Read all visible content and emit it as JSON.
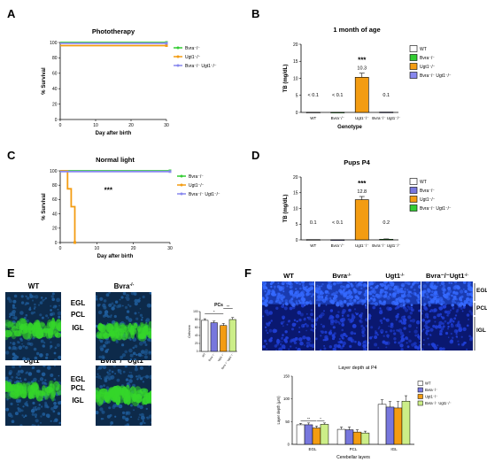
{
  "panels": {
    "A": {
      "letter": "A"
    },
    "B": {
      "letter": "B"
    },
    "C": {
      "letter": "C"
    },
    "D": {
      "letter": "D"
    },
    "E": {
      "letter": "E"
    },
    "F": {
      "letter": "F"
    }
  },
  "genotypes": {
    "wt": "WT",
    "bvra": "Bvra⁻/⁻",
    "ugt1": "Ugt1⁻/⁻",
    "double": "Bvra⁻/⁻ Ugt1⁻/⁻"
  },
  "histology_E": {
    "images": [
      {
        "title_base": "WT",
        "title_sup": ""
      },
      {
        "title_base": "Bvra",
        "title_sup": "-/-"
      },
      {
        "title_base": "Ugt1",
        "title_sup": "-/-"
      },
      {
        "title_base": "Bvra⁻/⁻ Ugt1",
        "title_sup": "-/-"
      }
    ],
    "layers": [
      "EGL",
      "PCL",
      "IGL"
    ]
  },
  "histology_F": {
    "images": [
      {
        "title_base": "WT",
        "title_sup": ""
      },
      {
        "title_base": "Bvra",
        "title_sup": "-/-"
      },
      {
        "title_base": "Ugt1",
        "title_sup": "-/-"
      },
      {
        "title_base": "Bvra⁻/⁻Ugt1",
        "title_sup": "-/-"
      }
    ],
    "layers": [
      "EGL",
      "PCL",
      "IGL"
    ]
  },
  "colors": {
    "wt": "#ffffff",
    "bvra_green": "#33cc33",
    "ugt1_orange": "#f39c12",
    "double_purple": "#8888ee",
    "bvra_blue": "#7777dd",
    "double_lightgreen": "#ccee88"
  },
  "chart_data": [
    {
      "id": "A",
      "type": "line",
      "title": "Phototherapy",
      "xlabel": "Day after birth",
      "ylabel": "% Survival",
      "xlim": [
        0,
        30
      ],
      "ylim": [
        0,
        100
      ],
      "xticks": [
        "0",
        "10",
        "20",
        "30"
      ],
      "yticks": [
        "0",
        "20",
        "40",
        "60",
        "80",
        "100"
      ],
      "legend_position": "right",
      "series": [
        {
          "name": "Bvra⁻/⁻",
          "color": "#33cc33",
          "x": [
            0,
            30
          ],
          "y": [
            100,
            100
          ]
        },
        {
          "name": "Ugt1⁻/⁻",
          "color": "#f39c12",
          "x": [
            0,
            30
          ],
          "y": [
            96,
            96
          ]
        },
        {
          "name": "Bvra⁻/⁻ Ugt1⁻/⁻",
          "color": "#8888ee",
          "x": [
            0,
            30
          ],
          "y": [
            99,
            99
          ]
        }
      ]
    },
    {
      "id": "B",
      "type": "bar",
      "title": "1 month of age",
      "xlabel": "Genotype",
      "ylabel": "TB (mg/dL)",
      "ylim": [
        0,
        20
      ],
      "yticks": [
        "0",
        "5",
        "10",
        "15",
        "20"
      ],
      "categories": [
        "WT",
        "Bvra⁻/⁻",
        "Ugt1⁻/⁻",
        "Bvra⁻/⁻ Ugt1⁻/⁻"
      ],
      "values": [
        0.05,
        0.05,
        10.3,
        0.1
      ],
      "errors": [
        0,
        0,
        1.2,
        0
      ],
      "bar_colors": [
        "#ffffff",
        "#33cc33",
        "#f39c12",
        "#8888ee"
      ],
      "data_labels": [
        "< 0.1",
        "< 0.1",
        "10.3",
        "0.1"
      ],
      "significance": [
        "",
        "",
        "***",
        ""
      ],
      "legend": [
        "WT",
        "Bvra⁻/⁻",
        "Ugt1⁻/⁻",
        "Bvra⁻/⁻ Ugt1⁻/⁻"
      ],
      "legend_position": "right"
    },
    {
      "id": "C",
      "type": "line",
      "title": "Normal light",
      "xlabel": "Day after birth",
      "ylabel": "% Survival",
      "xlim": [
        0,
        30
      ],
      "ylim": [
        0,
        100
      ],
      "xticks": [
        "0",
        "10",
        "20",
        "30"
      ],
      "yticks": [
        "0",
        "20",
        "40",
        "60",
        "80",
        "100"
      ],
      "annotation": "***",
      "legend_position": "right",
      "series": [
        {
          "name": "Bvra⁻/⁻",
          "color": "#33cc33",
          "x": [
            0,
            30
          ],
          "y": [
            100,
            100
          ]
        },
        {
          "name": "Ugt1⁻/⁻",
          "color": "#f39c12",
          "x": [
            0,
            2,
            2,
            3,
            3,
            4,
            4
          ],
          "y": [
            100,
            100,
            75,
            75,
            50,
            50,
            0
          ]
        },
        {
          "name": "Bvra⁻/⁻ Ugt1⁻/⁻",
          "color": "#8888ee",
          "x": [
            0,
            30
          ],
          "y": [
            99,
            99
          ]
        }
      ]
    },
    {
      "id": "D",
      "type": "bar",
      "title": "Pups P4",
      "xlabel": "",
      "ylabel": "TB (mg/dL)",
      "ylim": [
        0,
        20
      ],
      "yticks": [
        "0",
        "5",
        "10",
        "15",
        "20"
      ],
      "categories": [
        "WT",
        "Bvra⁻/⁻",
        "Ugt1⁻/⁻",
        "Bvra⁻/⁻ Ugt1⁻/⁻"
      ],
      "values": [
        0.1,
        0.05,
        12.8,
        0.2
      ],
      "errors": [
        0,
        0,
        1.0,
        0.1
      ],
      "bar_colors": [
        "#ffffff",
        "#7777dd",
        "#f39c12",
        "#33cc33"
      ],
      "data_labels": [
        "0.1",
        "< 0.1",
        "12.8",
        "0.2"
      ],
      "significance": [
        "",
        "",
        "***",
        ""
      ],
      "legend": [
        "WT",
        "Bvra⁻/⁻",
        "Ugt1⁻/⁻",
        "Bvra⁻/⁻ Ugt1⁻/⁻"
      ],
      "legend_position": "right"
    },
    {
      "id": "E",
      "type": "bar",
      "title": "PCs",
      "xlabel": "",
      "ylabel": "Cells/mm",
      "ylim": [
        0,
        100
      ],
      "yticks": [
        "0",
        "20",
        "40",
        "60",
        "80",
        "100"
      ],
      "categories": [
        "WT",
        "Bvra⁻/⁻",
        "Ugt1⁻/⁻",
        "Bvra⁻/⁻ Ugt1⁻/⁻"
      ],
      "values": [
        78,
        72,
        65,
        80
      ],
      "errors": [
        4,
        4,
        5,
        5
      ],
      "bar_colors": [
        "#ffffff",
        "#7777dd",
        "#f39c12",
        "#ccee88"
      ],
      "significance_pairs": [
        {
          "from": 0,
          "to": 2,
          "label": "*"
        },
        {
          "from": 2,
          "to": 3,
          "label": "**"
        }
      ]
    },
    {
      "id": "F",
      "type": "bar",
      "title": "Layer depth at P4",
      "xlabel": "Cerebellar layers",
      "ylabel": "Layer depth (μm)",
      "ylim": [
        0,
        150
      ],
      "yticks": [
        "0",
        "50",
        "100",
        "150"
      ],
      "categories": [
        "EGL",
        "PCL",
        "IGL"
      ],
      "series": [
        {
          "name": "WT",
          "color": "#ffffff",
          "values": [
            43,
            33,
            88
          ],
          "errors": [
            3,
            5,
            10
          ]
        },
        {
          "name": "Bvra⁻/⁻",
          "color": "#7777dd",
          "values": [
            43,
            32,
            82
          ],
          "errors": [
            4,
            6,
            12
          ]
        },
        {
          "name": "Ugt1⁻/⁻",
          "color": "#f39c12",
          "values": [
            36,
            27,
            80
          ],
          "errors": [
            4,
            5,
            14
          ]
        },
        {
          "name": "Bvra⁻/⁻ Ugt1⁻/⁻",
          "color": "#ccee88",
          "values": [
            44,
            25,
            95
          ],
          "errors": [
            3,
            4,
            12
          ]
        }
      ],
      "significance": [
        {
          "group": 0,
          "from": 0,
          "to": 2,
          "label": "**"
        },
        {
          "group": 0,
          "from": 2,
          "to": 3,
          "label": "*"
        }
      ],
      "legend_position": "top-right"
    }
  ]
}
